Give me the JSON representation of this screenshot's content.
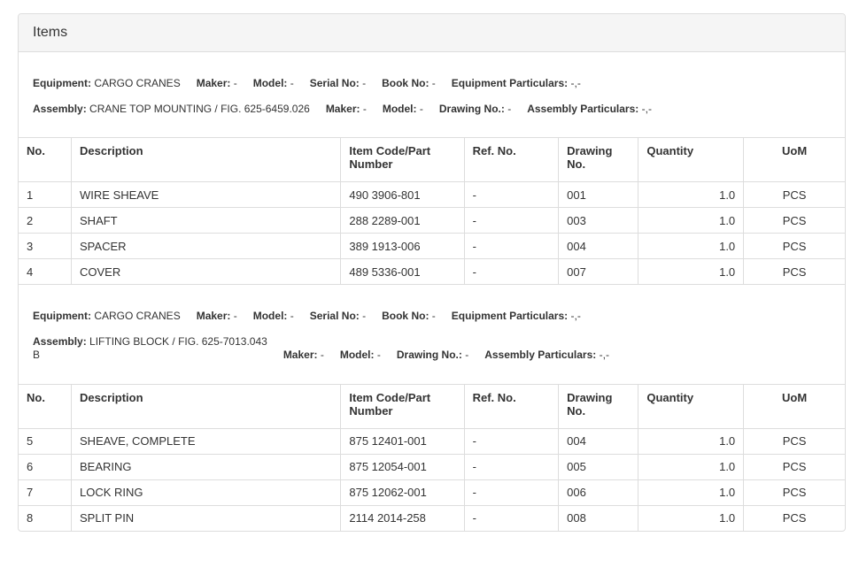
{
  "panel": {
    "title": "Items",
    "colors": {
      "heading_bg": "#f5f5f5",
      "border": "#dddddd",
      "text": "#333333"
    }
  },
  "table_columns": [
    {
      "key": "no",
      "label": "No."
    },
    {
      "key": "description",
      "label": "Description"
    },
    {
      "key": "item_code",
      "label": "Item Code/Part Number"
    },
    {
      "key": "ref_no",
      "label": "Ref. No."
    },
    {
      "key": "drawing_no",
      "label": "Drawing No."
    },
    {
      "key": "quantity",
      "label": "Quantity"
    },
    {
      "key": "uom",
      "label": "UoM"
    }
  ],
  "sections": [
    {
      "equipment_line": [
        {
          "label": "Equipment:",
          "value": "CARGO CRANES"
        },
        {
          "label": "Maker:",
          "value": "-"
        },
        {
          "label": "Model:",
          "value": "-"
        },
        {
          "label": "Serial No:",
          "value": "-"
        },
        {
          "label": "Book No:",
          "value": "-"
        },
        {
          "label": "Equipment Particulars:",
          "value": "-,-"
        }
      ],
      "assembly_line": [
        {
          "label": "Assembly:",
          "value": "CRANE TOP MOUNTING / FIG. 625-6459.026"
        },
        {
          "label": "Maker:",
          "value": "-"
        },
        {
          "label": "Model:",
          "value": "-"
        },
        {
          "label": "Drawing No.:",
          "value": "-"
        },
        {
          "label": "Assembly Particulars:",
          "value": "-,-"
        }
      ],
      "rows": [
        {
          "no": "1",
          "description": "WIRE SHEAVE",
          "item_code": "490 3906-801",
          "ref_no": "-",
          "drawing_no": "001",
          "quantity": "1.0",
          "uom": "PCS"
        },
        {
          "no": "2",
          "description": "SHAFT",
          "item_code": "288 2289-001",
          "ref_no": "-",
          "drawing_no": "003",
          "quantity": "1.0",
          "uom": "PCS"
        },
        {
          "no": "3",
          "description": "SPACER",
          "item_code": "389 1913-006",
          "ref_no": "-",
          "drawing_no": "004",
          "quantity": "1.0",
          "uom": "PCS"
        },
        {
          "no": "4",
          "description": "COVER",
          "item_code": "489 5336-001",
          "ref_no": "-",
          "drawing_no": "007",
          "quantity": "1.0",
          "uom": "PCS"
        }
      ]
    },
    {
      "equipment_line": [
        {
          "label": "Equipment:",
          "value": "CARGO CRANES"
        },
        {
          "label": "Maker:",
          "value": "-"
        },
        {
          "label": "Model:",
          "value": "-"
        },
        {
          "label": "Serial No:",
          "value": "-"
        },
        {
          "label": "Book No:",
          "value": "-"
        },
        {
          "label": "Equipment Particulars:",
          "value": "-,-"
        }
      ],
      "assembly_line": [
        {
          "label": "Assembly:",
          "value": "LIFTING BLOCK / FIG. 625-7013.043\nB"
        },
        {
          "label": "Maker:",
          "value": "-"
        },
        {
          "label": "Model:",
          "value": "-"
        },
        {
          "label": "Drawing No.:",
          "value": "-"
        },
        {
          "label": "Assembly Particulars:",
          "value": "-,-"
        }
      ],
      "rows": [
        {
          "no": "5",
          "description": "SHEAVE, COMPLETE",
          "item_code": "875 12401-001",
          "ref_no": "-",
          "drawing_no": "004",
          "quantity": "1.0",
          "uom": "PCS"
        },
        {
          "no": "6",
          "description": "BEARING",
          "item_code": "875 12054-001",
          "ref_no": "-",
          "drawing_no": "005",
          "quantity": "1.0",
          "uom": "PCS"
        },
        {
          "no": "7",
          "description": "LOCK RING",
          "item_code": "875 12062-001",
          "ref_no": "-",
          "drawing_no": "006",
          "quantity": "1.0",
          "uom": "PCS"
        },
        {
          "no": "8",
          "description": "SPLIT PIN",
          "item_code": "2114 2014-258",
          "ref_no": "-",
          "drawing_no": "008",
          "quantity": "1.0",
          "uom": "PCS"
        }
      ]
    }
  ]
}
